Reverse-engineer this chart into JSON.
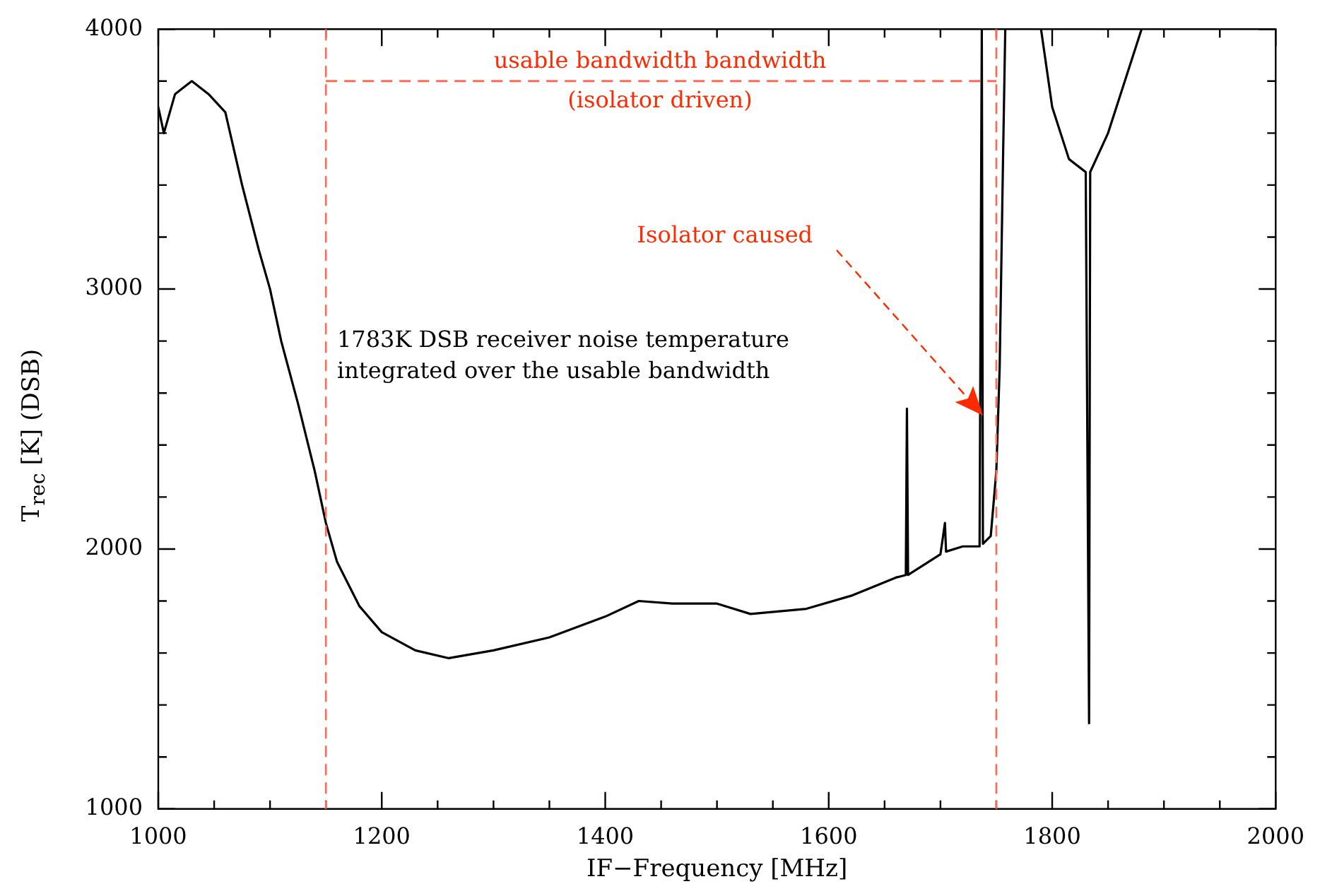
{
  "chart_data": {
    "type": "line",
    "xlabel": "IF−Frequency [MHz]",
    "ylabel": "T$_{rec}$ [K] (DSB)",
    "xlim": [
      1000,
      2000
    ],
    "ylim": [
      1000,
      4000
    ],
    "xticks": [
      1000,
      {
        "value": 1050,
        "label": null
      },
      {
        "value": 1100,
        "label": null
      },
      {
        "value": 1150,
        "label": null
      },
      1200,
      {
        "value": 1250,
        "label": null
      },
      {
        "value": 1300,
        "label": null
      },
      {
        "value": 1350,
        "label": null
      },
      1400,
      {
        "value": 1450,
        "label": null
      },
      {
        "value": 1500,
        "label": null
      },
      {
        "value": 1550,
        "label": null
      },
      1600,
      {
        "value": 1650,
        "label": null
      },
      {
        "value": 1700,
        "label": null
      },
      {
        "value": 1750,
        "label": null
      },
      1800,
      {
        "value": 1850,
        "label": null
      },
      {
        "value": 1900,
        "label": null
      },
      {
        "value": 1950,
        "label": null
      },
      2000
    ],
    "yticks": [
      1000,
      {
        "value": 1200,
        "label": null
      },
      {
        "value": 1400,
        "label": null
      },
      {
        "value": 1600,
        "label": null
      },
      {
        "value": 1800,
        "label": null
      },
      2000,
      {
        "value": 2200,
        "label": null
      },
      {
        "value": 2400,
        "label": null
      },
      {
        "value": 2600,
        "label": null
      },
      {
        "value": 2800,
        "label": null
      },
      3000,
      {
        "value": 3200,
        "label": null
      },
      {
        "value": 3400,
        "label": null
      },
      {
        "value": 3600,
        "label": null
      },
      {
        "value": 3800,
        "label": null
      },
      4000
    ],
    "grid": false,
    "legend": false,
    "marker": "none",
    "line_style": "solid",
    "series": [
      {
        "color": "#000000",
        "x": [
          1000,
          1005,
          1015,
          1030,
          1045,
          1060,
          1075,
          1090,
          1100,
          1110,
          1125,
          1140,
          1150,
          1160,
          1180,
          1200,
          1230,
          1260,
          1300,
          1350,
          1400,
          1430,
          1460,
          1500,
          1530,
          1580,
          1620,
          1660,
          1669,
          1670,
          1671,
          1700,
          1704,
          1705,
          1720,
          1735,
          1737,
          1738,
          1745,
          1750,
          1753,
          1756,
          1758,
          1770,
          1790,
          1800,
          1815,
          1830,
          1833,
          1834,
          1850,
          1865,
          1880
        ],
        "values": [
          3700,
          3600,
          3750,
          3800,
          3750,
          3680,
          3400,
          3150,
          3000,
          2800,
          2560,
          2300,
          2100,
          1950,
          1780,
          1680,
          1610,
          1580,
          1610,
          1660,
          1740,
          1800,
          1790,
          1790,
          1750,
          1770,
          1820,
          1890,
          1900,
          2540,
          1900,
          1980,
          2100,
          1990,
          2010,
          2010,
          4000,
          2020,
          2050,
          2300,
          2700,
          3500,
          4000,
          null,
          4000,
          3700,
          3500,
          3450,
          1330,
          3450,
          3600,
          3800,
          4000
        ]
      },
      {
        "color": "#ff6a55",
        "line_style": "dashed",
        "x": [
          1150,
          1750
        ],
        "values": [
          3800,
          3800
        ]
      }
    ],
    "ref_lines": [
      {
        "axis": "x",
        "value": 1150,
        "color": "#ff6a55",
        "line_style": "dashed"
      },
      {
        "axis": "x",
        "value": 1750,
        "color": "#ff6a55",
        "line_style": "dashed"
      }
    ],
    "annotations": [
      "1783K DSB receiver noise temperature\nintegrated over the usable bandwidth",
      "usable bandwidth bandwidth\n(isolator driven)",
      "Isolator caused"
    ]
  }
}
